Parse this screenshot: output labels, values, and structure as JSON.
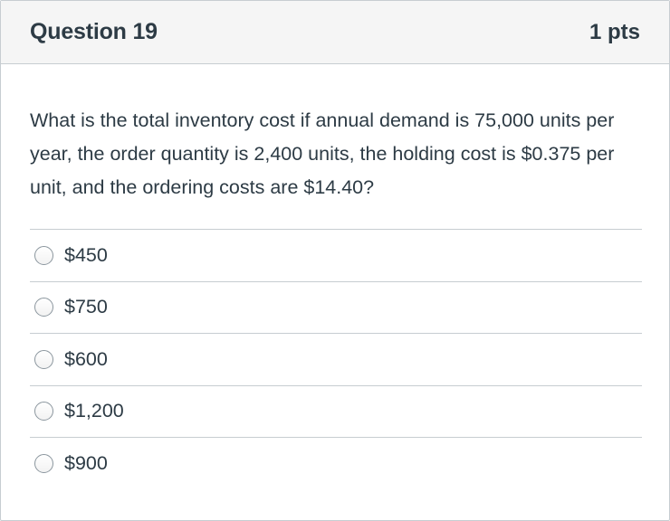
{
  "question": {
    "title": "Question 19",
    "points": "1 pts",
    "text": "What is the total inventory cost if annual demand is 75,000 units per year, the order quantity is 2,400 units, the holding cost is $0.375 per unit, and the ordering costs are $14.40?"
  },
  "answers": [
    {
      "label": "$450",
      "selected": false
    },
    {
      "label": "$750",
      "selected": false
    },
    {
      "label": "$600",
      "selected": false
    },
    {
      "label": "$1,200",
      "selected": false
    },
    {
      "label": "$900",
      "selected": false
    }
  ],
  "colors": {
    "text": "#2d3b45",
    "header_bg": "#f5f5f5",
    "border": "#c7cdd1"
  }
}
